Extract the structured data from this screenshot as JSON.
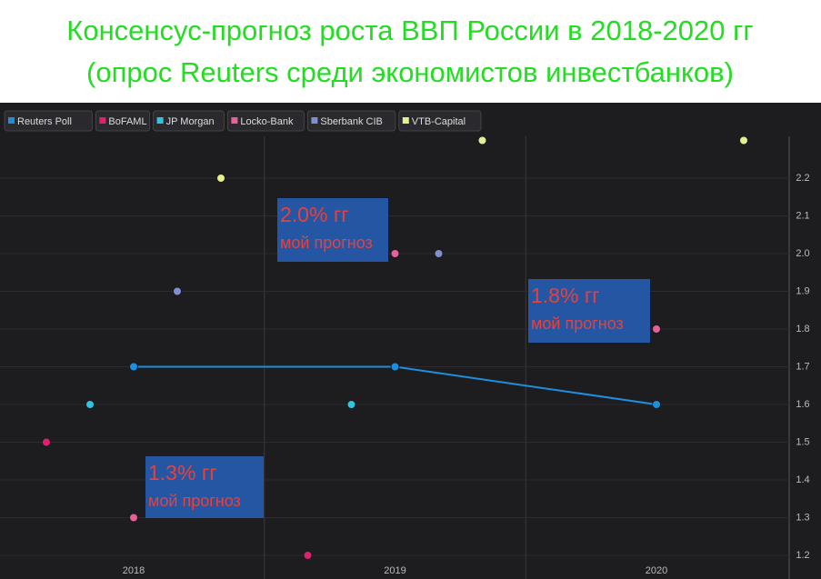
{
  "chart_data": {
    "type": "scatter",
    "title": "Консенсус-прогноз роста ВВП России в 2018-2020 гг",
    "subtitle": "(опрос Reuters среди экономистов инвестбанков)",
    "categories": [
      "2018",
      "2019",
      "2020"
    ],
    "series": [
      {
        "name": "Reuters Poll",
        "color": "#1e8fe0",
        "values": [
          1.7,
          1.7,
          1.6
        ],
        "line": true
      },
      {
        "name": "BoFAML",
        "color": "#e0206e",
        "values": [
          1.5,
          1.2,
          null
        ]
      },
      {
        "name": "JP Morgan",
        "color": "#2ec4e6",
        "values": [
          1.6,
          1.6,
          null
        ]
      },
      {
        "name": "Locko-Bank",
        "color": "#e8609a",
        "values": [
          1.3,
          2.0,
          1.8
        ]
      },
      {
        "name": "Sberbank CIB",
        "color": "#7f8fd0",
        "values": [
          1.9,
          2.0,
          null
        ]
      },
      {
        "name": "VTB-Capital",
        "color": "#e6f08a",
        "values": [
          2.2,
          2.3,
          2.3
        ]
      }
    ],
    "ylim": [
      1.17,
      2.35
    ],
    "yticks": [
      1.2,
      1.3,
      1.4,
      1.5,
      1.6,
      1.7,
      1.8,
      1.9,
      {
        "value": 2.0,
        "label": "2.0"
      },
      2.1,
      2.2
    ],
    "grid": true,
    "annotations": [
      {
        "title": "1.3% гг",
        "text": "мой прогноз"
      },
      {
        "title": "2.0% гг",
        "text": "мой прогноз"
      },
      {
        "title": "1.8% гг",
        "text": "мой прогноз"
      }
    ]
  }
}
